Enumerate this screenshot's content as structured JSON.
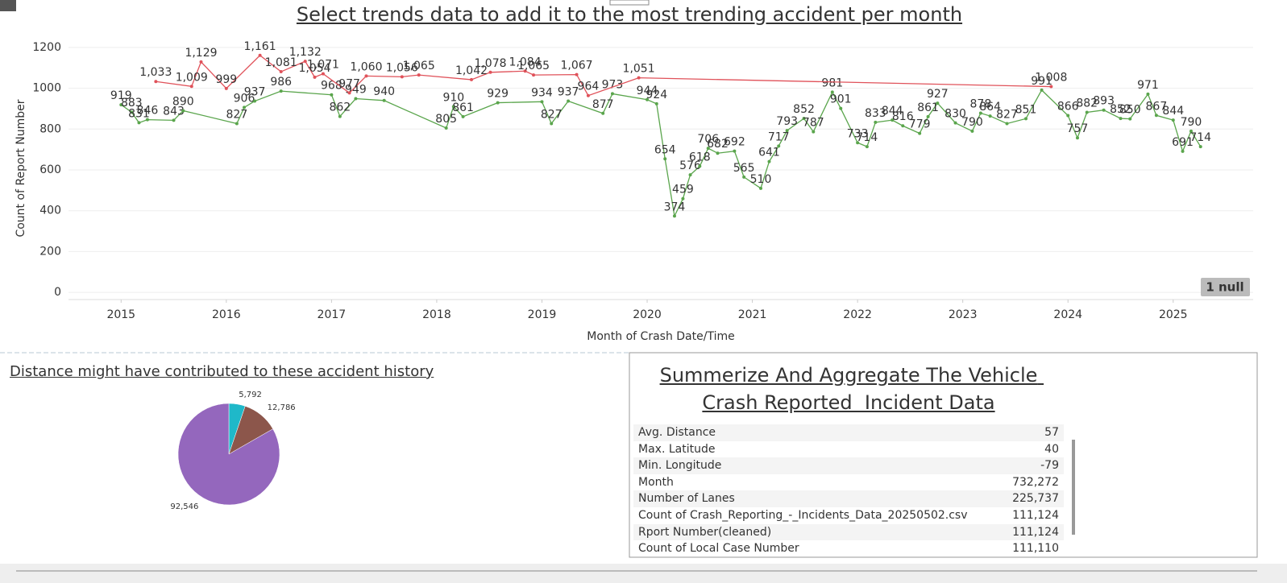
{
  "chart_data": [
    {
      "type": "line",
      "title": "Select trends data to add it to the most trending accident per month",
      "x_label": "Month of Crash Date/Time",
      "y_label": "Count of Report Number",
      "note": "1 null",
      "xlim": [
        2014.5,
        2025.76
      ],
      "xticks": [
        2015,
        2016,
        2017,
        2018,
        2019,
        2020,
        2021,
        2022,
        2023,
        2024,
        2025
      ],
      "ylim": [
        -35,
        1235
      ],
      "yticks": [
        0,
        200,
        400,
        600,
        800,
        1000,
        1200
      ],
      "grid": true,
      "series": [
        {
          "color": "#5aa54c",
          "x": [
            2015.0,
            2015.1,
            2015.17,
            2015.25,
            2015.5,
            2015.59,
            2016.1,
            2016.17,
            2016.27,
            2016.52,
            2017.0,
            2017.08,
            2017.23,
            2017.5,
            2018.09,
            2018.16,
            2018.25,
            2018.58,
            2019.0,
            2019.09,
            2019.25,
            2019.58,
            2019.67,
            2020.0,
            2020.09,
            2020.17,
            2020.26,
            2020.34,
            2020.41,
            2020.5,
            2020.58,
            2020.67,
            2020.83,
            2020.92,
            2021.08,
            2021.16,
            2021.25,
            2021.33,
            2021.49,
            2021.58,
            2021.76,
            2021.84,
            2022.0,
            2022.09,
            2022.17,
            2022.33,
            2022.43,
            2022.59,
            2022.67,
            2022.76,
            2022.93,
            2023.09,
            2023.17,
            2023.26,
            2023.42,
            2023.6,
            2023.75,
            2024.0,
            2024.09,
            2024.18,
            2024.34,
            2024.5,
            2024.59,
            2024.76,
            2024.84,
            2025.0,
            2025.09,
            2025.17,
            2025.26
          ],
          "values": [
            919,
            883,
            831,
            846,
            843,
            890,
            827,
            906,
            937,
            986,
            968,
            862,
            949,
            940,
            805,
            910,
            861,
            929,
            934,
            827,
            937,
            877,
            973,
            944,
            924,
            654,
            374,
            459,
            576,
            618,
            706,
            682,
            692,
            565,
            510,
            641,
            717,
            793,
            852,
            787,
            981,
            901,
            733,
            714,
            833,
            844,
            816,
            779,
            861,
            927,
            830,
            790,
            878,
            864,
            827,
            851,
            991,
            866,
            757,
            882,
            893,
            852,
            850,
            971,
            867,
            844,
            691,
            790,
            714
          ]
        },
        {
          "color": "#e0525a",
          "x": [
            2015.33,
            2015.67,
            2015.76,
            2016.0,
            2016.32,
            2016.52,
            2016.75,
            2016.84,
            2016.92,
            2017.17,
            2017.33,
            2017.67,
            2017.83,
            2018.33,
            2018.51,
            2018.84,
            2018.92,
            2019.33,
            2019.44,
            2019.92,
            2023.84
          ],
          "values": [
            1033,
            1009,
            1129,
            999,
            1161,
            1081,
            1132,
            1054,
            1071,
            977,
            1060,
            1056,
            1065,
            1042,
            1078,
            1084,
            1065,
            1067,
            964,
            1051,
            1008
          ],
          "value_labels": [
            "1,033",
            "1,009",
            "1,129",
            "999",
            "1,161",
            "1,081",
            "1,132",
            "1,054",
            "1,071",
            "977",
            "1,060",
            "1,056",
            "1,065",
            "1,042",
            "1,078",
            "1,084",
            "1,065",
            "1,067",
            "964",
            "1,051",
            "1,008"
          ]
        }
      ]
    },
    {
      "type": "pie",
      "title": "Distance might have contributed to these accident history",
      "values": [
        5792,
        12786,
        92546
      ],
      "value_labels": [
        "5,792",
        "12,786",
        "92,546"
      ],
      "colors": [
        "#1fb8c9",
        "#8c564b",
        "#9467bd"
      ]
    }
  ],
  "table": {
    "title": "Summerize And Aggregate The Vehicle Crash Reported  Incident Data",
    "rows": [
      [
        "Avg. Distance",
        "57"
      ],
      [
        "Max. Latitude",
        "40"
      ],
      [
        "Min. Longitude",
        "-79"
      ],
      [
        "Month",
        "732,272"
      ],
      [
        "Number of Lanes",
        "225,737"
      ],
      [
        "Count of Crash_Reporting_-_Incidents_Data_20250502.csv",
        "111,124"
      ],
      [
        "Rport Number(cleaned)",
        "111,124"
      ],
      [
        "Count of Local Case Number",
        "111,110"
      ]
    ]
  }
}
